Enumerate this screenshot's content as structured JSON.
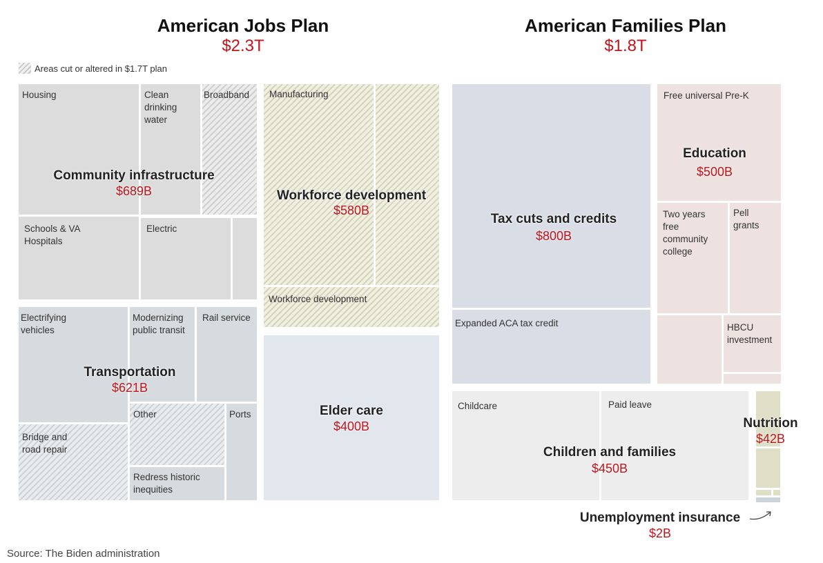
{
  "legend": {
    "text": "Areas cut or altered in $1.7T plan"
  },
  "plans": [
    {
      "title": "American Jobs Plan",
      "total": "$2.3T"
    },
    {
      "title": "American Families Plan",
      "total": "$1.8T"
    }
  ],
  "source": "Source: The Biden administration",
  "chart_data": {
    "type": "treemap",
    "title": "",
    "legend_entries": [
      "Areas cut or altered in $1.7T plan"
    ],
    "plans": [
      {
        "name": "American Jobs Plan",
        "total": "$2.3T",
        "categories": [
          {
            "name": "Community infrastructure",
            "value": "$689B",
            "items": [
              "Housing",
              "Clean drinking water",
              "Broadband",
              "Schools & VA Hospitals",
              "Electric"
            ]
          },
          {
            "name": "Transportation",
            "value": "$621B",
            "items": [
              "Electrifying vehicles",
              "Modernizing public transit",
              "Rail service",
              "Bridge and road repair",
              "Other",
              "Ports",
              "Redress historic inequities"
            ]
          },
          {
            "name": "Workforce development",
            "value": "$580B",
            "items": [
              "Manufacturing",
              "Workforce development"
            ]
          },
          {
            "name": "Elder care",
            "value": "$400B",
            "items": []
          }
        ]
      },
      {
        "name": "American Families Plan",
        "total": "$1.8T",
        "categories": [
          {
            "name": "Tax cuts and credits",
            "value": "$800B",
            "items": [
              "Expanded ACA tax credit"
            ]
          },
          {
            "name": "Education",
            "value": "$500B",
            "items": [
              "Free universal Pre-K",
              "Two years free community college",
              "Pell grants",
              "HBCU investment"
            ]
          },
          {
            "name": "Children and families",
            "value": "$450B",
            "items": [
              "Childcare",
              "Paid leave"
            ]
          },
          {
            "name": "Nutrition",
            "value": "$42B",
            "items": []
          },
          {
            "name": "Unemployment insurance",
            "value": "$2B",
            "items": []
          }
        ]
      }
    ]
  },
  "labels": {
    "housing": "Housing",
    "clean_water": "Clean drinking water",
    "broadband": "Broadband",
    "schools": "Schools & VA Hospitals",
    "electric": "Electric",
    "ev": "Electrifying vehicles",
    "transit": "Modernizing public transit",
    "rail": "Rail service",
    "bridge": "Bridge and road repair",
    "other": "Other",
    "ports": "Ports",
    "redress": "Redress historic inequities",
    "manufacturing": "Manufacturing",
    "workforce_sub": "Workforce development",
    "aca": "Expanded ACA tax credit",
    "prek": "Free universal Pre-K",
    "college": "Two years free community college",
    "pell": "Pell grants",
    "hbcu": "HBCU investment",
    "childcare": "Childcare",
    "paid_leave": "Paid leave"
  },
  "categories": {
    "community": {
      "name": "Community infrastructure",
      "value": "$689B"
    },
    "transport": {
      "name": "Transportation",
      "value": "$621B"
    },
    "workforce": {
      "name": "Workforce development",
      "value": "$580B"
    },
    "elder": {
      "name": "Elder care",
      "value": "$400B"
    },
    "tax": {
      "name": "Tax cuts and credits",
      "value": "$800B"
    },
    "education": {
      "name": "Education",
      "value": "$500B"
    },
    "children": {
      "name": "Children and families",
      "value": "$450B"
    },
    "nutrition": {
      "name": "Nutrition",
      "value": "$42B"
    },
    "unemployment": {
      "name": "Unemployment insurance",
      "value": "$2B"
    }
  }
}
